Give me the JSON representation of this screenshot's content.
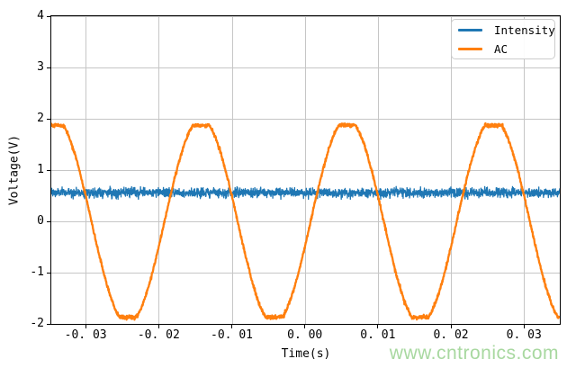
{
  "figure": {
    "background": "#ffffff",
    "watermark": {
      "text": "www.cntronics.com",
      "color": "#a8d8a0"
    }
  },
  "chart_data": {
    "type": "line",
    "title": "",
    "xlabel": "Time(s)",
    "ylabel": "Voltage(V)",
    "xlim": [
      -0.0347,
      0.0349
    ],
    "ylim": [
      -2,
      4
    ],
    "grid": true,
    "grid_color": "#c6c6c6",
    "axis_color": "#000000",
    "x_ticks": {
      "values": [
        -0.03,
        -0.02,
        -0.01,
        0.0,
        0.01,
        0.02,
        0.03
      ],
      "labels": [
        "-0. 03",
        "-0. 02",
        "-0. 01",
        "0. 00",
        "0. 01",
        "0. 02",
        "0. 03"
      ]
    },
    "y_ticks": {
      "values": [
        4,
        3,
        2,
        1,
        0,
        -1,
        -2
      ],
      "labels": [
        "4",
        "3",
        "2",
        "1",
        "0",
        "-1",
        "-2"
      ]
    },
    "legend": {
      "position": "upper-right",
      "entries": [
        {
          "label": "Intensity",
          "color": "#1f77b4"
        },
        {
          "label": "AC",
          "color": "#ff7f0e"
        }
      ]
    },
    "series": [
      {
        "name": "Intensity",
        "color": "#1f77b4",
        "model": "noisy-constant",
        "mean_v": 0.56,
        "noise_sigma_v": 0.045,
        "noise_clamp_v": 0.13,
        "linewidth": 1.3,
        "samples": 2400
      },
      {
        "name": "AC",
        "color": "#ff7f0e",
        "model": "clipped-sine",
        "frequency_hz": 50,
        "period_s": 0.02,
        "amplitude_v": 2.0,
        "clip_v": 1.87,
        "peak_time_s": 0.0058,
        "observed_peak_v": 1.9,
        "observed_trough_v": -1.9,
        "peak_times_s": [
          -0.0342,
          -0.0142,
          0.0058,
          0.0258
        ],
        "trough_times_s": [
          -0.0242,
          -0.0042,
          0.0158
        ],
        "noise_sigma_v": 0.018,
        "linewidth": 2.3,
        "samples": 2000
      }
    ]
  }
}
